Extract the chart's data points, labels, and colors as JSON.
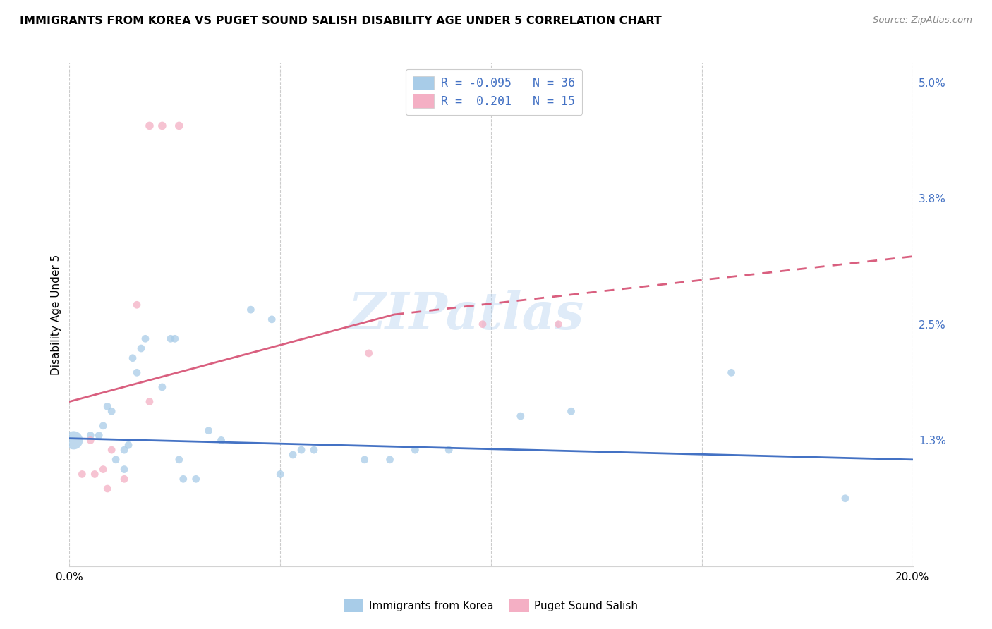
{
  "title": "IMMIGRANTS FROM KOREA VS PUGET SOUND SALISH DISABILITY AGE UNDER 5 CORRELATION CHART",
  "source": "Source: ZipAtlas.com",
  "ylabel": "Disability Age Under 5",
  "xlim": [
    0.0,
    0.2
  ],
  "ylim": [
    0.0,
    0.052
  ],
  "yticks": [
    0.013,
    0.025,
    0.038,
    0.05
  ],
  "ytick_labels": [
    "1.3%",
    "2.5%",
    "3.8%",
    "5.0%"
  ],
  "xticks": [
    0.0,
    0.05,
    0.1,
    0.15,
    0.2
  ],
  "xtick_labels": [
    "0.0%",
    "",
    "",
    "",
    "20.0%"
  ],
  "blue_color": "#a8cce8",
  "pink_color": "#f4afc4",
  "blue_line_color": "#4472c4",
  "pink_line_color": "#d95f7f",
  "blue_line": {
    "x0": 0.0,
    "y0": 0.0132,
    "x1": 0.2,
    "y1": 0.011
  },
  "pink_line_solid": {
    "x0": 0.0,
    "y0": 0.017,
    "x1": 0.077,
    "y1": 0.026
  },
  "pink_line_dash": {
    "x0": 0.077,
    "y0": 0.026,
    "x1": 0.2,
    "y1": 0.032
  },
  "blue_points": [
    [
      0.001,
      0.013,
      350
    ],
    [
      0.005,
      0.0135,
      60
    ],
    [
      0.007,
      0.0135,
      60
    ],
    [
      0.008,
      0.0145,
      60
    ],
    [
      0.009,
      0.0165,
      60
    ],
    [
      0.01,
      0.016,
      60
    ],
    [
      0.011,
      0.011,
      60
    ],
    [
      0.013,
      0.01,
      60
    ],
    [
      0.013,
      0.012,
      60
    ],
    [
      0.014,
      0.0125,
      60
    ],
    [
      0.015,
      0.0215,
      60
    ],
    [
      0.016,
      0.02,
      60
    ],
    [
      0.017,
      0.0225,
      60
    ],
    [
      0.018,
      0.0235,
      60
    ],
    [
      0.022,
      0.0185,
      60
    ],
    [
      0.024,
      0.0235,
      60
    ],
    [
      0.025,
      0.0235,
      60
    ],
    [
      0.026,
      0.011,
      60
    ],
    [
      0.027,
      0.009,
      60
    ],
    [
      0.03,
      0.009,
      60
    ],
    [
      0.033,
      0.014,
      60
    ],
    [
      0.036,
      0.013,
      60
    ],
    [
      0.043,
      0.0265,
      60
    ],
    [
      0.048,
      0.0255,
      60
    ],
    [
      0.05,
      0.0095,
      60
    ],
    [
      0.053,
      0.0115,
      60
    ],
    [
      0.055,
      0.012,
      60
    ],
    [
      0.058,
      0.012,
      60
    ],
    [
      0.07,
      0.011,
      60
    ],
    [
      0.076,
      0.011,
      60
    ],
    [
      0.082,
      0.012,
      60
    ],
    [
      0.09,
      0.012,
      60
    ],
    [
      0.107,
      0.0155,
      60
    ],
    [
      0.119,
      0.016,
      60
    ],
    [
      0.157,
      0.02,
      60
    ],
    [
      0.184,
      0.007,
      60
    ]
  ],
  "pink_points": [
    [
      0.003,
      0.0095,
      60
    ],
    [
      0.005,
      0.013,
      60
    ],
    [
      0.006,
      0.0095,
      60
    ],
    [
      0.008,
      0.01,
      60
    ],
    [
      0.009,
      0.008,
      60
    ],
    [
      0.01,
      0.012,
      60
    ],
    [
      0.013,
      0.009,
      60
    ],
    [
      0.016,
      0.027,
      60
    ],
    [
      0.019,
      0.017,
      60
    ],
    [
      0.019,
      0.0455,
      70
    ],
    [
      0.022,
      0.0455,
      70
    ],
    [
      0.026,
      0.0455,
      70
    ],
    [
      0.071,
      0.022,
      60
    ],
    [
      0.098,
      0.025,
      60
    ],
    [
      0.116,
      0.025,
      60
    ]
  ],
  "legend_line1": "R = -0.095   N = 36",
  "legend_line2": "R =  0.201   N = 15",
  "bottom_legend_blue": "Immigrants from Korea",
  "bottom_legend_pink": "Puget Sound Salish",
  "watermark": "ZIPatlas"
}
